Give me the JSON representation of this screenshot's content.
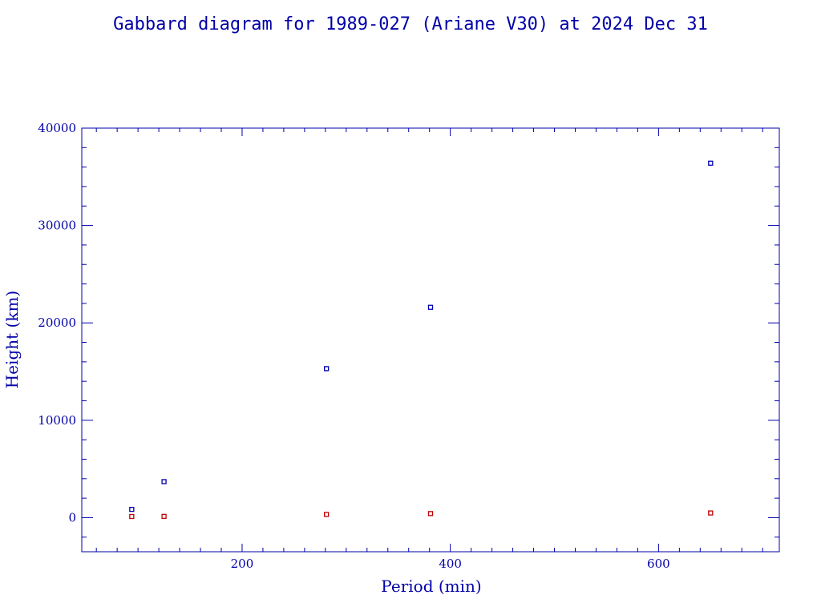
{
  "chart_data": {
    "type": "scatter",
    "title": "Gabbard diagram for 1989-027 (Ariane V30) at 2024 Dec 31",
    "xlabel": "Period (min)",
    "ylabel": "Height (km)",
    "xlim": [
      46,
      716
    ],
    "ylim": [
      -3500,
      40000
    ],
    "xticks": [
      200,
      400,
      600
    ],
    "yticks": [
      0,
      10000,
      20000,
      30000,
      40000
    ],
    "grid": false,
    "colors": {
      "axis": "#0000a8",
      "apogee": "#0000b0",
      "perigee": "#c00000"
    },
    "series": [
      {
        "role": "apogee",
        "color": "#0000b0",
        "points": [
          [
            94,
            850
          ],
          [
            125,
            3700
          ],
          [
            281,
            15300
          ],
          [
            381,
            21600
          ],
          [
            650,
            36400
          ]
        ]
      },
      {
        "role": "perigee",
        "color": "#c00000",
        "points": [
          [
            94,
            120
          ],
          [
            125,
            130
          ],
          [
            281,
            330
          ],
          [
            381,
            420
          ],
          [
            650,
            480
          ]
        ]
      }
    ]
  }
}
